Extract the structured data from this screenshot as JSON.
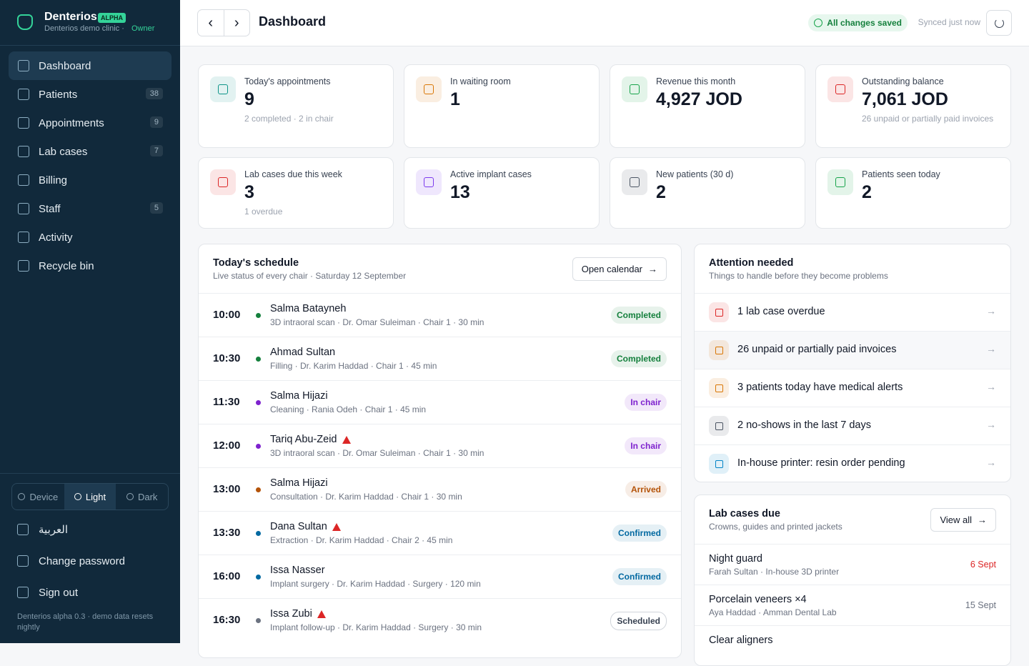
{
  "sidebar": {
    "brand": "Denterios",
    "badge": "ALPHA",
    "clinic": "Denterios demo clinic ·",
    "role": "Owner",
    "nav": [
      {
        "label": "Dashboard",
        "active": true
      },
      {
        "label": "Patients",
        "count": 38
      },
      {
        "label": "Appointments",
        "count": 9
      },
      {
        "label": "Lab cases",
        "count": 7
      },
      {
        "label": "Billing"
      },
      {
        "label": "Staff",
        "count": 5
      },
      {
        "label": "Activity"
      },
      {
        "label": "Recycle bin"
      }
    ],
    "theme": [
      {
        "label": "Device"
      },
      {
        "label": "Light",
        "active": true
      },
      {
        "label": "Dark"
      }
    ],
    "language": "العربية",
    "change_password": "Change password",
    "sign_out": "Sign out",
    "footer": "Denterios alpha 0.3 · demo data resets nightly"
  },
  "header": {
    "title": "Dashboard",
    "saved": "All changes saved",
    "synced": "Synced just now"
  },
  "stats": [
    {
      "label": "Today's appointments",
      "value": 9,
      "note": "2 completed · 2 in chair",
      "color": "#0d9488"
    },
    {
      "label": "In waiting room",
      "value": 1,
      "color": "#d97706"
    },
    {
      "label": "Revenue this month",
      "value": "4,927 JOD",
      "color": "#16a34a"
    },
    {
      "label": "Outstanding balance",
      "value": "7,061 JOD",
      "note": "26 unpaid or partially paid invoices",
      "color": "#dc2626"
    },
    {
      "label": "Lab cases due this week",
      "value": 3,
      "note": "1 overdue",
      "color": "#dc2626"
    },
    {
      "label": "Active implant cases",
      "value": 13,
      "color": "#7c3aed"
    },
    {
      "label": "New patients (30 d)",
      "value": 2,
      "color": "#4b5563"
    },
    {
      "label": "Patients seen today",
      "value": 2,
      "color": "#16a34a"
    }
  ],
  "schedule": {
    "title": "Today's schedule",
    "subtitle": "Live status of every chair · Saturday 12 September",
    "button": "Open calendar",
    "rows": [
      {
        "time": "10:00",
        "name": "Salma Batayneh",
        "detail": "3D intraoral scan · Dr. Omar Suleiman · Chair 1 · 30 min",
        "status": "Completed",
        "color": "#15803d"
      },
      {
        "time": "10:30",
        "name": "Ahmad Sultan",
        "detail": "Filling · Dr. Karim Haddad · Chair 1 · 45 min",
        "status": "Completed",
        "color": "#15803d"
      },
      {
        "time": "11:30",
        "name": "Salma Hijazi",
        "detail": "Cleaning · Rania Odeh · Chair 1 · 45 min",
        "status": "In chair",
        "color": "#7e22ce"
      },
      {
        "time": "12:00",
        "name": "Tariq Abu-Zeid",
        "alert": true,
        "detail": "3D intraoral scan · Dr. Omar Suleiman · Chair 1 · 30 min",
        "status": "In chair",
        "color": "#7e22ce"
      },
      {
        "time": "13:00",
        "name": "Salma Hijazi",
        "detail": "Consultation · Dr. Karim Haddad · Chair 1 · 30 min",
        "status": "Arrived",
        "color": "#b45309"
      },
      {
        "time": "13:30",
        "name": "Dana Sultan",
        "alert": true,
        "detail": "Extraction · Dr. Karim Haddad · Chair 2 · 45 min",
        "status": "Confirmed",
        "color": "#0369a1"
      },
      {
        "time": "16:00",
        "name": "Issa Nasser",
        "detail": "Implant surgery · Dr. Karim Haddad · Surgery · 120 min",
        "status": "Confirmed",
        "color": "#0369a1"
      },
      {
        "time": "16:30",
        "name": "Issa Zubi",
        "alert": true,
        "detail": "Implant follow-up · Dr. Karim Haddad · Surgery · 30 min",
        "status": "Scheduled",
        "color": "#6b7280"
      }
    ]
  },
  "attention": {
    "title": "Attention needed",
    "subtitle": "Things to handle before they become problems",
    "items": [
      {
        "text": "1 lab case overdue",
        "color": "#dc2626"
      },
      {
        "text": "26 unpaid or partially paid invoices",
        "color": "#d97706"
      },
      {
        "text": "3 patients today have medical alerts",
        "color": "#d97706"
      },
      {
        "text": "2 no-shows in the last 7 days",
        "color": "#4b5563"
      },
      {
        "text": "In-house printer: resin order pending",
        "color": "#0284c7"
      }
    ]
  },
  "lab_due": {
    "title": "Lab cases due",
    "subtitle": "Crowns, guides and printed jackets",
    "button": "View all",
    "items": [
      {
        "name": "Night guard",
        "detail": "Farah Sultan · In-house 3D printer",
        "due": "6 Sept",
        "overdue": true
      },
      {
        "name": "Porcelain veneers ×4",
        "detail": "Aya Haddad · Amman Dental Lab",
        "due": "15 Sept"
      },
      {
        "name": "Clear aligners"
      }
    ]
  }
}
